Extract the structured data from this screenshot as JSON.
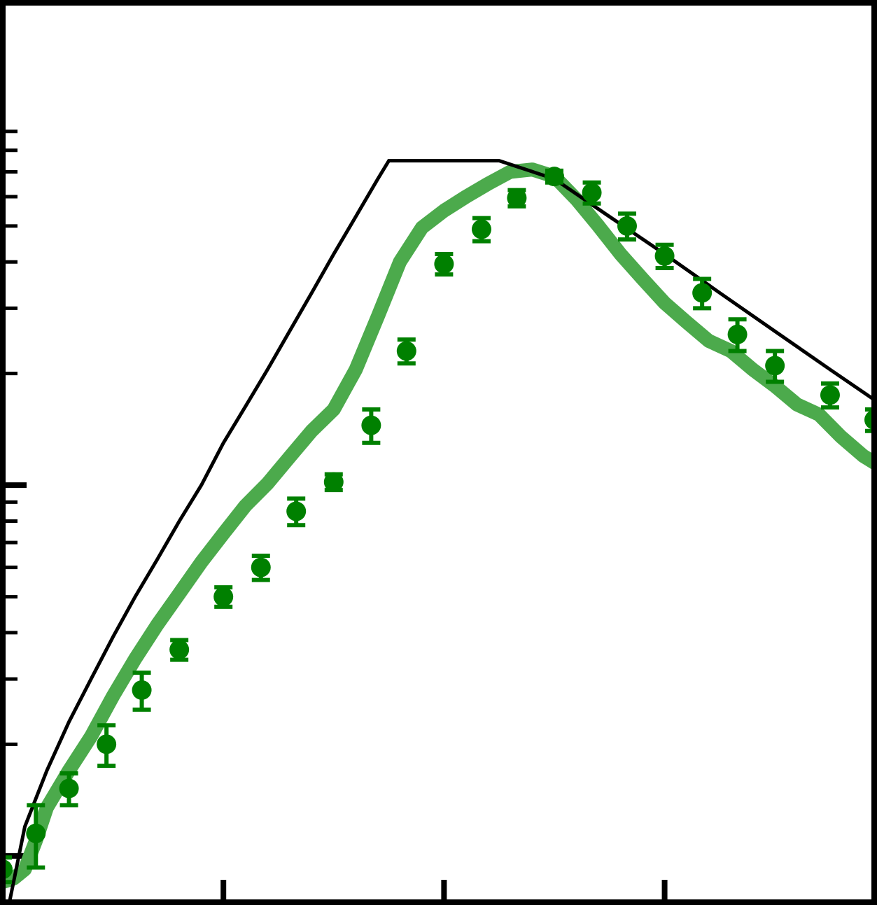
{
  "chart_data": {
    "type": "line",
    "title": "",
    "xlabel": "",
    "ylabel": "",
    "x_scale": "linear",
    "y_scale": "log",
    "xlim": [
      0,
      3.95
    ],
    "ylim": [
      0.075,
      20
    ],
    "x_major_ticks": [
      1,
      2,
      3
    ],
    "y_major_ticks": [
      0.1,
      1
    ],
    "y_minor_ticks": [
      0.09,
      0.2,
      0.3,
      0.4,
      0.5,
      0.6,
      0.7,
      0.8,
      0.9,
      2,
      3,
      4,
      5,
      6,
      7,
      8,
      9
    ],
    "grid": false,
    "legend": "none",
    "colors": {
      "model_line": "#000000",
      "smooth_band": "#4caa4c",
      "points": "#008000",
      "axes": "#000000"
    },
    "series": [
      {
        "kind": "broken_power_law_line",
        "x": [
          0.03,
          0.1,
          0.2,
          0.3,
          0.4,
          0.5,
          0.6,
          0.7,
          0.8,
          0.9,
          1.0,
          1.1,
          1.2,
          1.3,
          1.4,
          1.5,
          1.6,
          1.7,
          1.75,
          2.0,
          2.25,
          2.5,
          2.75,
          3.0,
          3.25,
          3.5,
          3.75,
          3.95
        ],
        "y": [
          0.075,
          0.12,
          0.17,
          0.23,
          0.3,
          0.39,
          0.5,
          0.63,
          0.8,
          1.0,
          1.3,
          1.63,
          2.05,
          2.6,
          3.3,
          4.2,
          5.3,
          6.7,
          7.5,
          7.5,
          7.5,
          6.7,
          5.3,
          4.2,
          3.3,
          2.6,
          2.05,
          1.7
        ]
      },
      {
        "kind": "smoothed_curve",
        "x": [
          0.0,
          0.05,
          0.1,
          0.15,
          0.2,
          0.3,
          0.4,
          0.5,
          0.6,
          0.7,
          0.8,
          0.9,
          1.0,
          1.1,
          1.2,
          1.3,
          1.4,
          1.5,
          1.6,
          1.7,
          1.8,
          1.9,
          2.0,
          2.1,
          2.2,
          2.3,
          2.4,
          2.5,
          2.6,
          2.7,
          2.8,
          2.9,
          3.0,
          3.1,
          3.2,
          3.3,
          3.4,
          3.5,
          3.6,
          3.7,
          3.8,
          3.9,
          3.95
        ],
        "y": [
          0.085,
          0.087,
          0.092,
          0.11,
          0.135,
          0.17,
          0.21,
          0.27,
          0.34,
          0.42,
          0.51,
          0.62,
          0.74,
          0.88,
          1.01,
          1.19,
          1.4,
          1.6,
          2.05,
          2.85,
          4.0,
          4.95,
          5.5,
          6.0,
          6.5,
          7.0,
          7.1,
          6.8,
          5.9,
          5.0,
          4.2,
          3.6,
          3.1,
          2.75,
          2.45,
          2.3,
          2.05,
          1.85,
          1.65,
          1.55,
          1.35,
          1.2,
          1.15
        ]
      },
      {
        "kind": "points_with_errors",
        "x": [
          0.0,
          0.15,
          0.3,
          0.47,
          0.63,
          0.8,
          1.0,
          1.17,
          1.33,
          1.5,
          1.67,
          1.83,
          2.0,
          2.17,
          2.33,
          2.5,
          2.67,
          2.83,
          3.0,
          3.17,
          3.33,
          3.5,
          3.75,
          3.95
        ],
        "y": [
          0.092,
          0.115,
          0.152,
          0.2,
          0.28,
          0.36,
          0.5,
          0.6,
          0.85,
          1.02,
          1.45,
          2.3,
          3.95,
          4.9,
          5.95,
          6.8,
          6.15,
          5.0,
          4.15,
          3.3,
          2.55,
          2.1,
          1.75,
          1.5
        ],
        "yerr_low": [
          0.007,
          0.022,
          0.015,
          0.025,
          0.032,
          0.022,
          0.03,
          0.045,
          0.07,
          0.05,
          0.15,
          0.17,
          0.25,
          0.35,
          0.3,
          0.25,
          0.4,
          0.4,
          0.3,
          0.3,
          0.25,
          0.2,
          0.13,
          0.1
        ],
        "yerr_high": [
          0.007,
          0.022,
          0.015,
          0.025,
          0.032,
          0.022,
          0.03,
          0.045,
          0.07,
          0.05,
          0.15,
          0.17,
          0.25,
          0.35,
          0.3,
          0.25,
          0.4,
          0.4,
          0.3,
          0.3,
          0.25,
          0.2,
          0.13,
          0.1
        ]
      }
    ]
  }
}
